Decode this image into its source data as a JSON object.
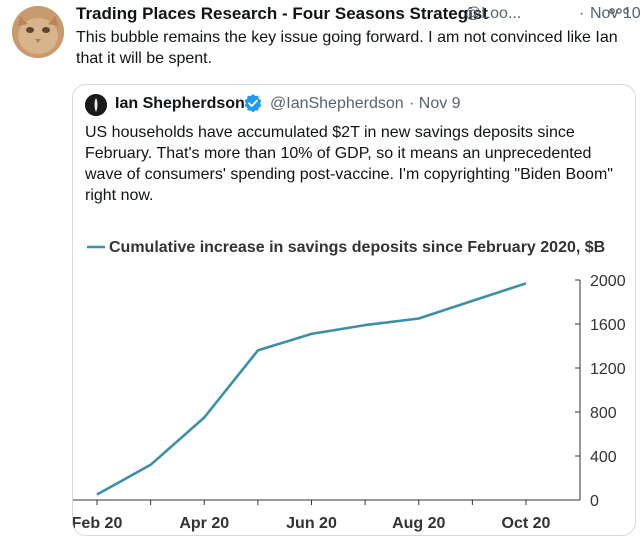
{
  "tweet": {
    "author": "Trading Places Research - Four Seasons Strategist",
    "handle": "@Loo...",
    "dot": "·",
    "date": "Nov 10",
    "more_icon": "more-icon",
    "text": "This bubble remains the key issue going forward. I am not convinced like Ian that it will be spent."
  },
  "quoted": {
    "author": "Ian Shepherdson",
    "verified_icon": "verified-badge-icon",
    "handle": "@IanShepherdson",
    "date": "· Nov 9",
    "text": "US households have accumulated $2T in new savings deposits since February. That's more than 10% of GDP, so it means an unprecedented wave of consumers' spending post-vaccine.  I'm copyrighting \"Biden Boom\" right now."
  },
  "colors": {
    "line": "#3c8fa6",
    "verified": "#1d9bf0"
  },
  "chart_data": {
    "type": "line",
    "title": "Cumulative increase in savings deposits since February 2020, $B",
    "x_tick_labels": [
      "Feb 20",
      "Apr 20",
      "Jun 20",
      "Aug 20",
      "Oct 20"
    ],
    "y_ticks": [
      0,
      400,
      800,
      1200,
      1600,
      2000
    ],
    "ylim": [
      0,
      2000
    ],
    "y_axis_side": "right",
    "legend": "inline-with-title",
    "grid": false,
    "series": [
      {
        "name": "Cumulative increase in savings deposits since February 2020, $B",
        "x": [
          "Feb 20",
          "Mar 20",
          "Apr 20",
          "May 20",
          "Jun 20",
          "Jul 20",
          "Aug 20",
          "Sep 20",
          "Oct 20"
        ],
        "values": [
          50,
          320,
          750,
          1360,
          1510,
          1590,
          1650,
          1810,
          1970
        ]
      }
    ]
  }
}
